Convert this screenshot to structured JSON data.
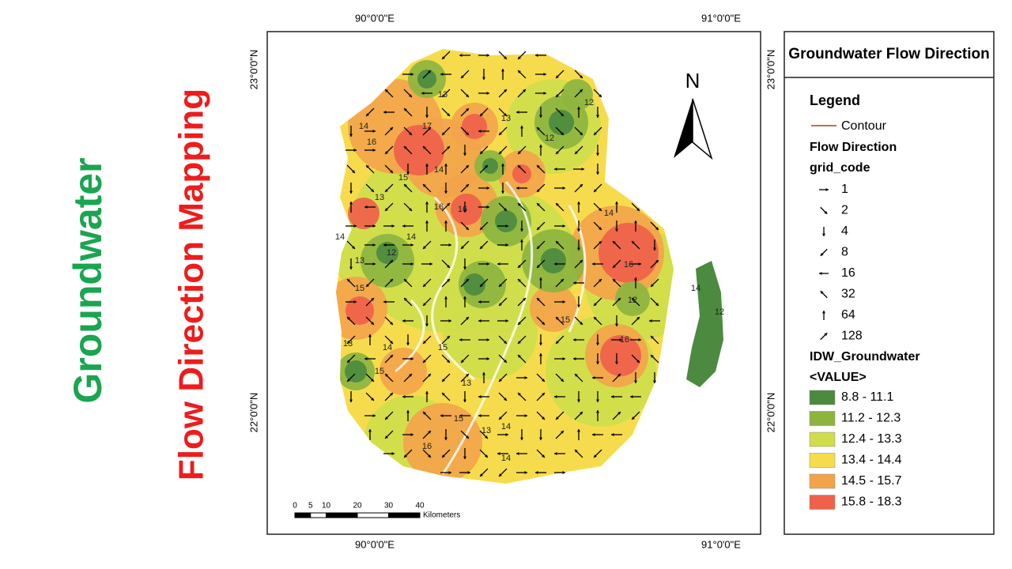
{
  "side_titles": [
    "Groundwater",
    "Flow Direction Mapping"
  ],
  "map": {
    "top_labels": [
      "90°0'0\"E",
      "91°0'0\"E"
    ],
    "bottom_labels": [
      "90°0'0\"E",
      "91°0'0\"E"
    ],
    "left_labels": [
      "23°0'0\"N",
      "22°0'0\"N"
    ],
    "right_labels": [
      "23°0'0\"N",
      "22°0'0\"N"
    ],
    "north": "N",
    "scale_ticks": [
      0,
      5,
      10,
      20,
      30,
      40
    ],
    "scale_unit": "Kilometers",
    "contour_labels": [
      13,
      13,
      12,
      12,
      14,
      16,
      17,
      14,
      15,
      13,
      16,
      14,
      16,
      12,
      13,
      14,
      15,
      14,
      16,
      12,
      15,
      16,
      13,
      15,
      14,
      13,
      14,
      13,
      15,
      16,
      12,
      14,
      15,
      14
    ]
  },
  "legend": {
    "title": "Groundwater Flow Direction",
    "heading": "Legend",
    "contour": "Contour",
    "flow_heading": "Flow Direction",
    "grid_heading": "grid_code",
    "grid_codes": [
      1,
      2,
      4,
      8,
      16,
      32,
      64,
      128
    ],
    "idw_heading": "IDW_Groundwater",
    "value_heading": "<VALUE>",
    "classes": [
      {
        "label": "8.8 - 11.1",
        "color": "#4b8a3f"
      },
      {
        "label": "11.2 - 12.3",
        "color": "#8db43f"
      },
      {
        "label": "12.4 - 13.3",
        "color": "#cfdd4b"
      },
      {
        "label": "13.4 - 14.4",
        "color": "#f6dc4c"
      },
      {
        "label": "14.5 - 15.7",
        "color": "#f3a44a"
      },
      {
        "label": "15.8 - 18.3",
        "color": "#ef614b"
      }
    ]
  }
}
